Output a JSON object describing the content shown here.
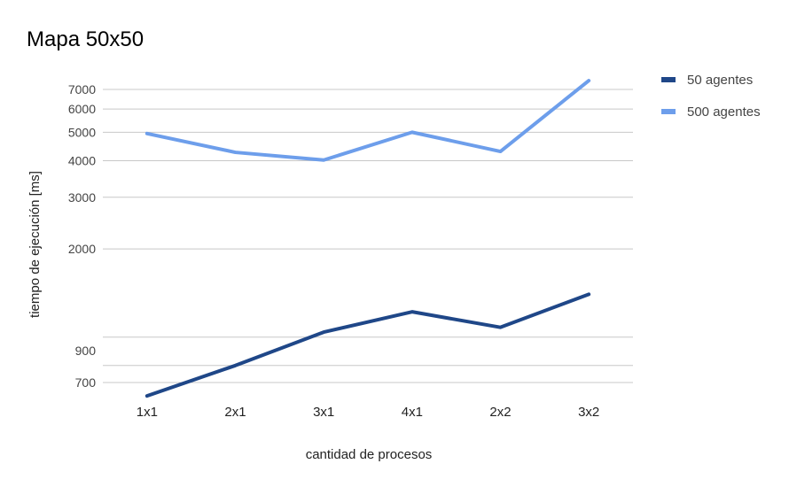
{
  "chart_data": {
    "type": "line",
    "title": "Mapa 50x50",
    "xlabel": "cantidad de procesos",
    "ylabel": "tiempo de ejecución [ms]",
    "categories": [
      "1x1",
      "2x1",
      "3x1",
      "4x1",
      "2x2",
      "3x2"
    ],
    "y_scale": "log",
    "ylim": [
      600,
      8500
    ],
    "yticks": [
      {
        "value": 700,
        "label": "700"
      },
      {
        "value": 900,
        "label": "900"
      },
      {
        "value": 2000,
        "label": "2000"
      },
      {
        "value": 3000,
        "label": "3000"
      },
      {
        "value": 4000,
        "label": "4000"
      },
      {
        "value": 5000,
        "label": "5000"
      },
      {
        "value": 6000,
        "label": "6000"
      },
      {
        "value": 7000,
        "label": "7000"
      }
    ],
    "grid_values": [
      700,
      800,
      1000,
      2000,
      3000,
      4000,
      5000,
      6000,
      7000
    ],
    "grid": true,
    "legend_position": "right",
    "series": [
      {
        "name": "50 agentes",
        "color": "#1f4788",
        "values": [
          630,
          800,
          1040,
          1220,
          1080,
          1400
        ]
      },
      {
        "name": "500 agentes",
        "color": "#6d9eeb",
        "values": [
          4950,
          4270,
          4020,
          5000,
          4300,
          7500
        ]
      }
    ]
  }
}
